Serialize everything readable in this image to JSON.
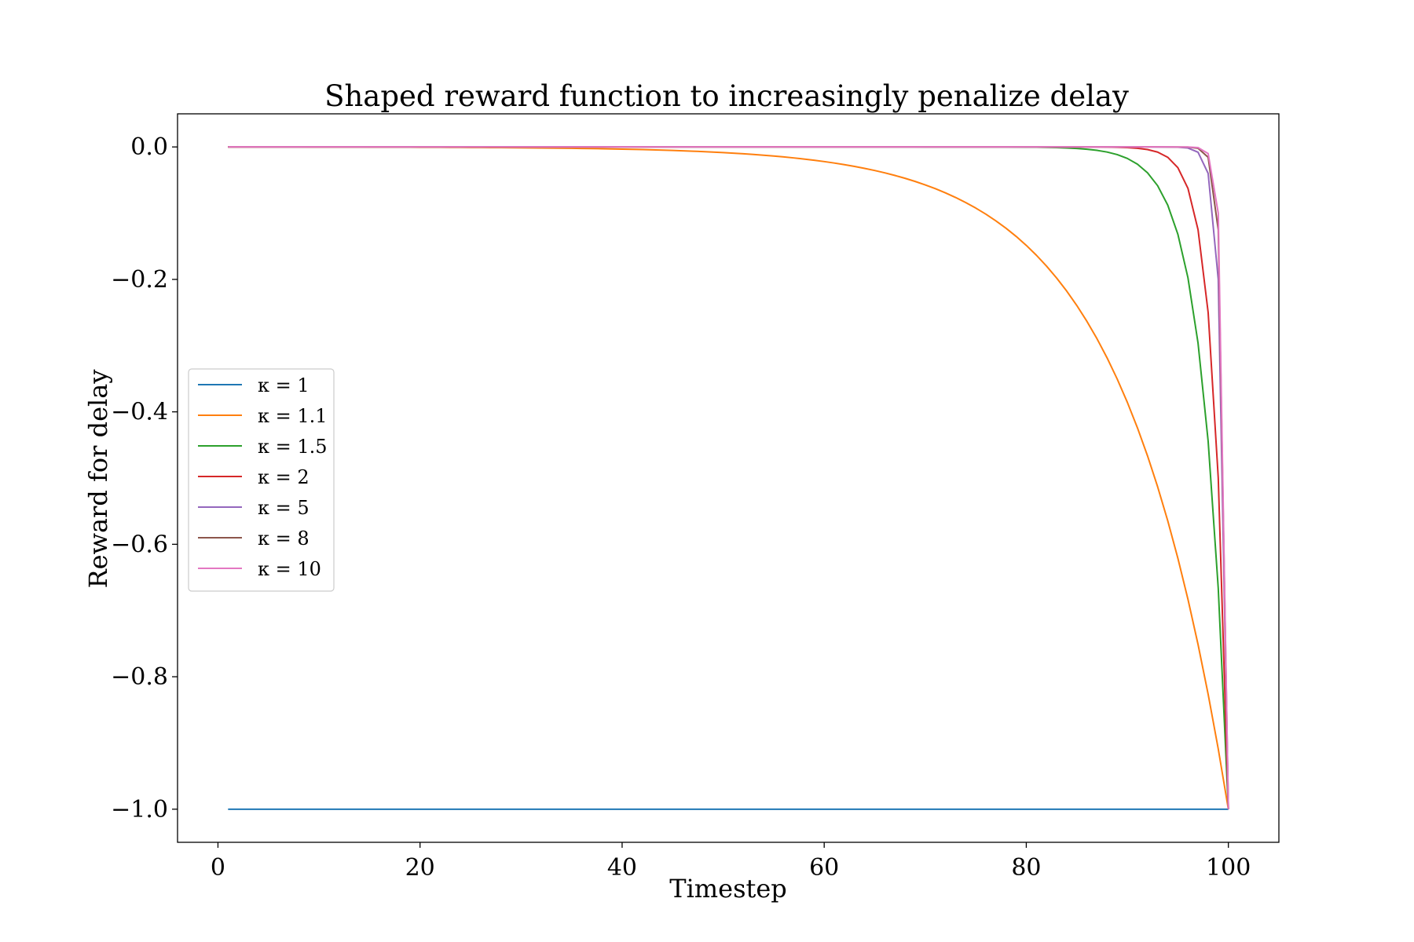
{
  "chart_data": {
    "type": "line",
    "title": "Shaped reward function to increasingly penalize delay",
    "xlabel": "Timestep",
    "ylabel": "Reward for delay",
    "xlim": [
      -4,
      105
    ],
    "ylim": [
      -1.05,
      0.05
    ],
    "x_ticks": [
      0,
      20,
      40,
      60,
      80,
      100
    ],
    "x_tick_labels": [
      "0",
      "20",
      "40",
      "60",
      "80",
      "100"
    ],
    "y_ticks": [
      0.0,
      -0.2,
      -0.4,
      -0.6,
      -0.8,
      -1.0
    ],
    "y_tick_labels": [
      "0.0",
      "−0.2",
      "−0.4",
      "−0.6",
      "−0.8",
      "−1.0"
    ],
    "grid": false,
    "legend_position": "center-left",
    "x_range": [
      1,
      100
    ],
    "formula": "y = -kappa^(x-100)",
    "series": [
      {
        "name": "κ = 1",
        "kappa": 1,
        "color": "#1f77b4"
      },
      {
        "name": "κ = 1.1",
        "kappa": 1.1,
        "color": "#ff7f0e"
      },
      {
        "name": "κ = 1.5",
        "kappa": 1.5,
        "color": "#2ca02c"
      },
      {
        "name": "κ = 2",
        "kappa": 2,
        "color": "#d62728"
      },
      {
        "name": "κ = 5",
        "kappa": 5,
        "color": "#9467bd"
      },
      {
        "name": "κ = 8",
        "kappa": 8,
        "color": "#8c564b"
      },
      {
        "name": "κ = 10",
        "kappa": 10,
        "color": "#e377c2"
      }
    ]
  }
}
